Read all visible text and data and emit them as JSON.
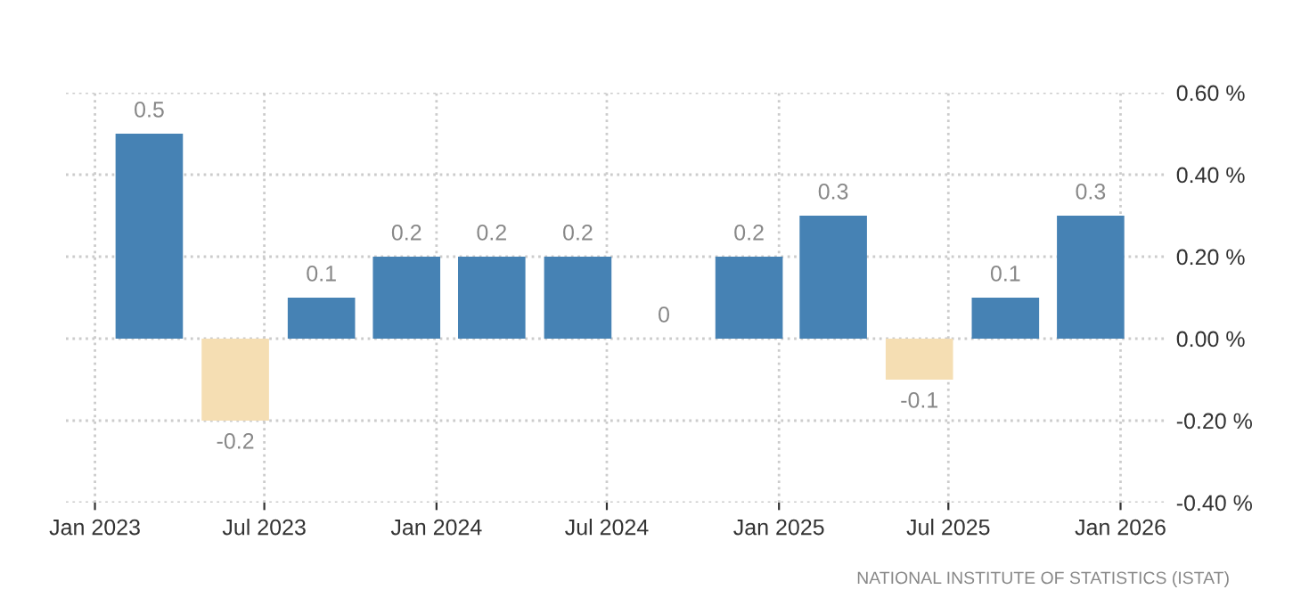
{
  "chart_data": {
    "type": "bar",
    "x": [
      "2023-02-28",
      "2023-05-31",
      "2023-08-31",
      "2023-11-30",
      "2024-02-29",
      "2024-05-31",
      "2024-08-31",
      "2024-11-30",
      "2025-02-28",
      "2025-05-31",
      "2025-08-31",
      "2025-11-30"
    ],
    "values": [
      0.5,
      -0.2,
      0.1,
      0.2,
      0.2,
      0.2,
      0,
      0.2,
      0.3,
      -0.1,
      0.1,
      0.3
    ],
    "colors": [
      "#4682b4",
      "#f5deb3",
      "#4682b4",
      "#4682b4",
      "#4682b4",
      "#4682b4",
      "#4682b4",
      "#4682b4",
      "#4682b4",
      "#f5deb3",
      "#4682b4",
      "#4682b4"
    ],
    "data_labels": true,
    "xlim": [
      "2022-12-01",
      "2026-02-20"
    ],
    "xticks": [
      {
        "value": "2023-01-01",
        "label": "Jan 2023"
      },
      {
        "value": "2023-07-01",
        "label": "Jul 2023"
      },
      {
        "value": "2024-01-01",
        "label": "Jan 2024"
      },
      {
        "value": "2024-07-01",
        "label": "Jul 2024"
      },
      {
        "value": "2025-01-01",
        "label": "Jan 2025"
      },
      {
        "value": "2025-07-01",
        "label": "Jul 2025"
      },
      {
        "value": "2026-01-01",
        "label": "Jan 2026"
      }
    ],
    "ylim": [
      -0.4,
      0.6
    ],
    "yticks": [
      {
        "value": 0.6,
        "label": "0.60 %"
      },
      {
        "value": 0.4,
        "label": "0.40 %"
      },
      {
        "value": 0.2,
        "label": "0.20 %"
      },
      {
        "value": 0,
        "label": "0.00 %"
      },
      {
        "value": -0.2,
        "label": "-0.20 %"
      },
      {
        "value": -0.4,
        "label": "-0.40 %"
      }
    ],
    "grid": true,
    "annotations": [
      "NATIONAL INSTITUTE OF STATISTICS (ISTAT)"
    ]
  }
}
